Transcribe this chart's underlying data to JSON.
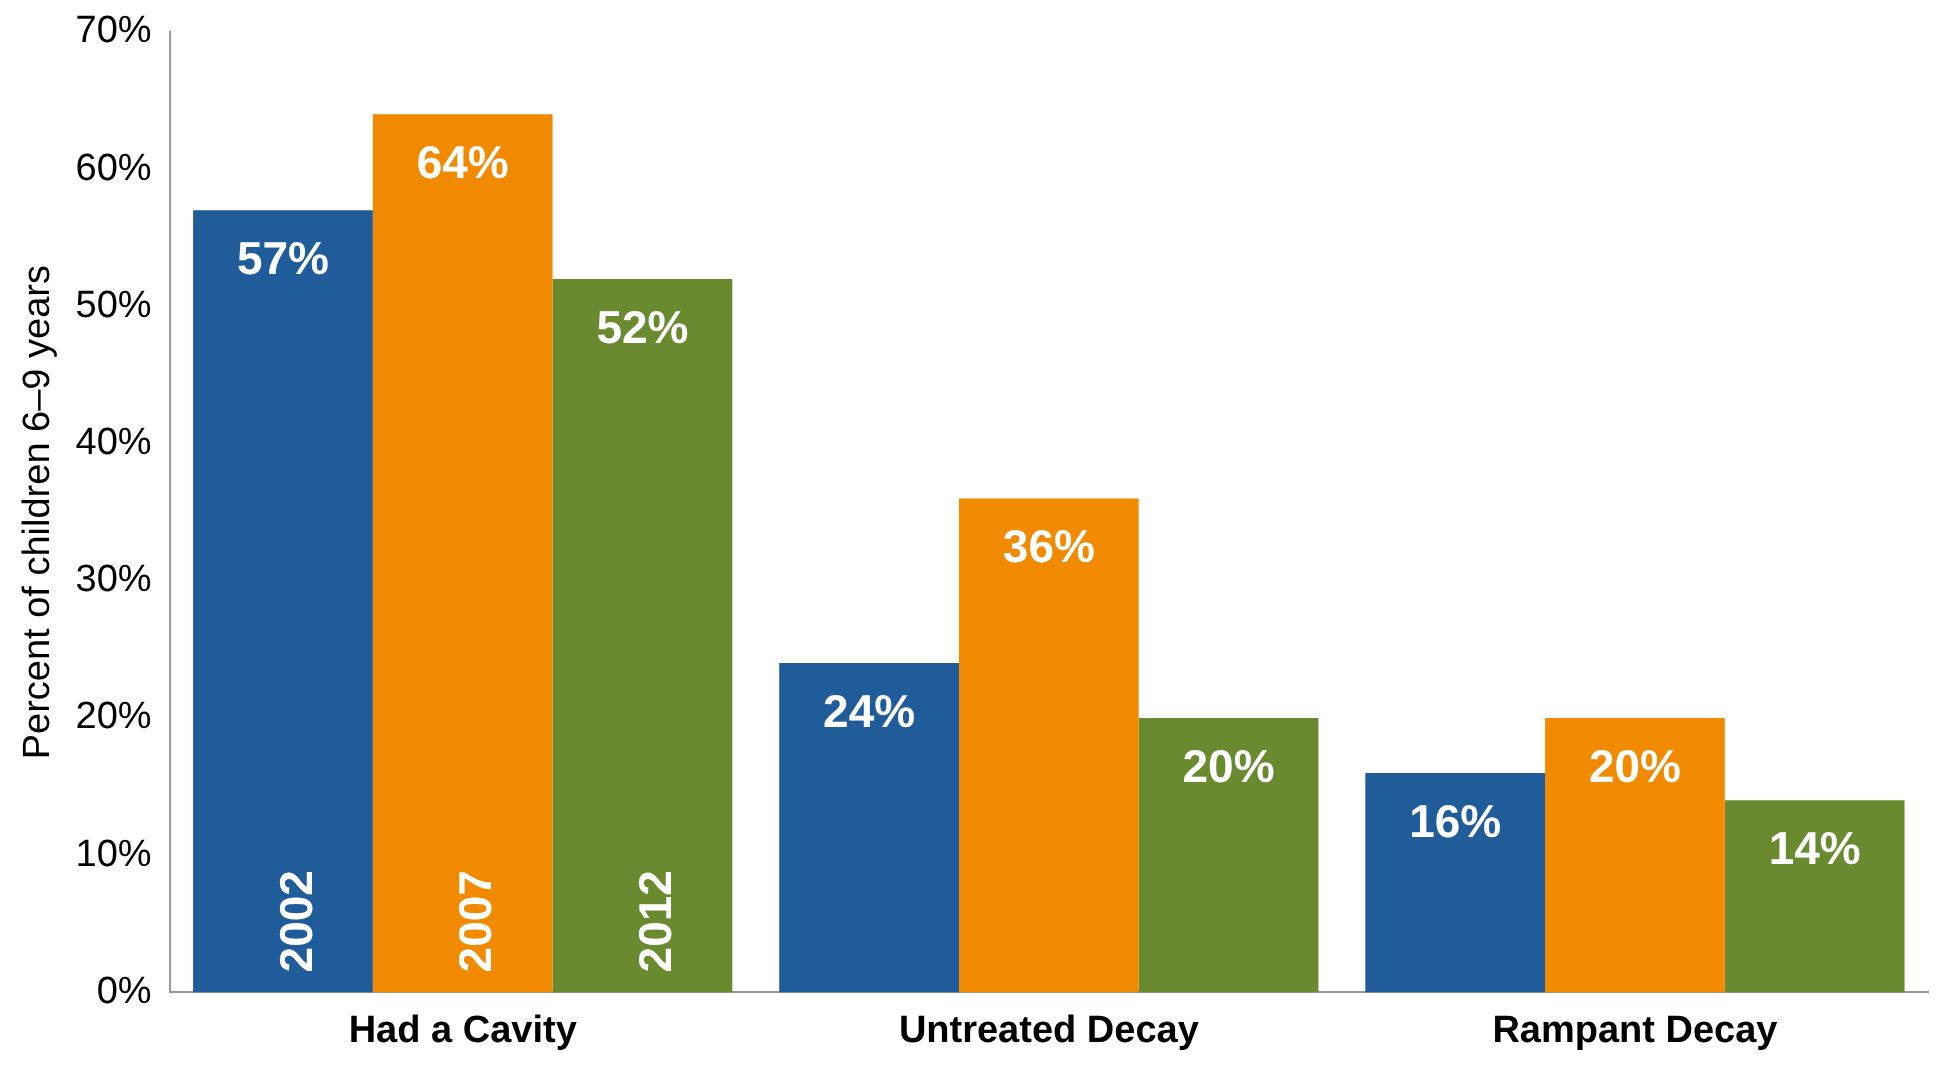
{
  "chart_data": {
    "type": "bar",
    "ylabel": "Percent of children 6–9 years",
    "categories": [
      "Had a Cavity",
      "Untreated Decay",
      "Rampant Decay"
    ],
    "series": [
      {
        "name": "2002",
        "color": "#1f5c99",
        "values": [
          57,
          24,
          16
        ],
        "value_labels": [
          "57%",
          "24%",
          "16%"
        ]
      },
      {
        "name": "2007",
        "color": "#f28a00",
        "values": [
          64,
          36,
          20
        ],
        "value_labels": [
          "64%",
          "36%",
          "20%"
        ]
      },
      {
        "name": "2012",
        "color": "#6a8a2f",
        "values": [
          52,
          20,
          14
        ],
        "value_labels": [
          "52%",
          "20%",
          "14%"
        ]
      }
    ],
    "ylim": [
      0,
      70
    ],
    "yticks": [
      {
        "value": 0,
        "label": "0%"
      },
      {
        "value": 10,
        "label": "10%"
      },
      {
        "value": 20,
        "label": "20%"
      },
      {
        "value": 30,
        "label": "30%"
      },
      {
        "value": 40,
        "label": "40%"
      },
      {
        "value": 50,
        "label": "50%"
      },
      {
        "value": 60,
        "label": "60%"
      },
      {
        "value": 70,
        "label": "70%"
      }
    ],
    "grid": false,
    "legend": false
  }
}
